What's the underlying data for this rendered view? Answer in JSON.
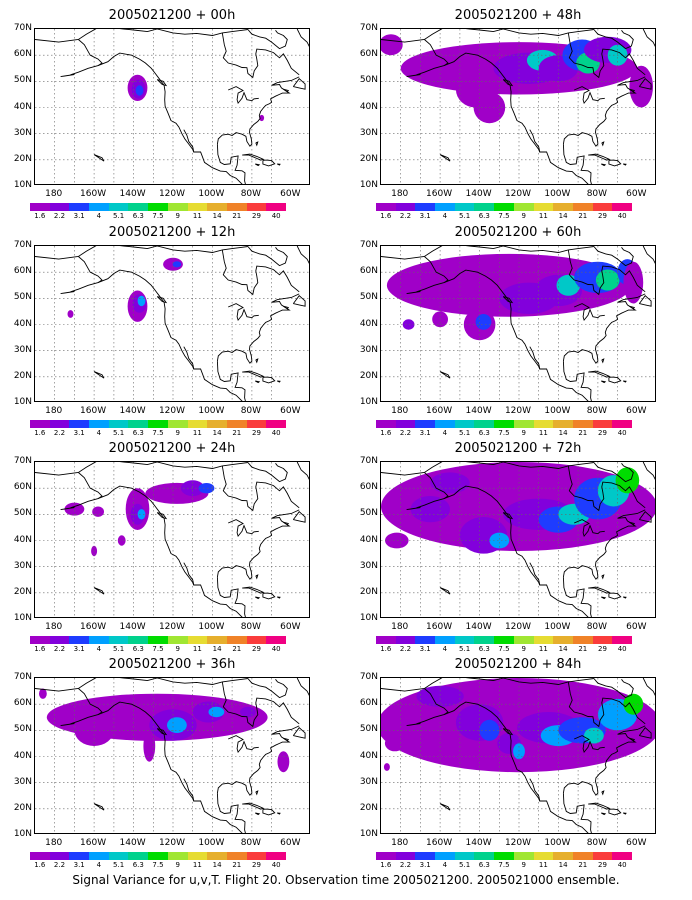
{
  "panels": [
    {
      "title": "2005021200 + 00h"
    },
    {
      "title": "2005021200 + 48h"
    },
    {
      "title": "2005021200 + 12h"
    },
    {
      "title": "2005021200 + 60h"
    },
    {
      "title": "2005021200 + 24h"
    },
    {
      "title": "2005021200 + 72h"
    },
    {
      "title": "2005021200 + 36h"
    },
    {
      "title": "2005021200 + 84h"
    }
  ],
  "lat_labels": [
    "70N",
    "60N",
    "50N",
    "40N",
    "30N",
    "20N",
    "10N"
  ],
  "lon_labels": [
    "180",
    "160W",
    "140W",
    "120W",
    "100W",
    "80W",
    "60W"
  ],
  "colorbar": {
    "labels": [
      "1.6",
      "2.2",
      "3.1",
      "4",
      "5.1",
      "6.3",
      "7.5",
      "9",
      "11",
      "14",
      "21",
      "29",
      "40"
    ],
    "colors": [
      "#a000c8",
      "#8200dc",
      "#1e3cff",
      "#00a0ff",
      "#00c8c8",
      "#00d28c",
      "#00dc00",
      "#a0e632",
      "#e6dc32",
      "#e6af2d",
      "#f08228",
      "#fa3c3c",
      "#f00082"
    ]
  },
  "footer": "Signal Variance for u,v,T. Flight 20. Observation time 2005021200. 2005021000 ensemble."
}
